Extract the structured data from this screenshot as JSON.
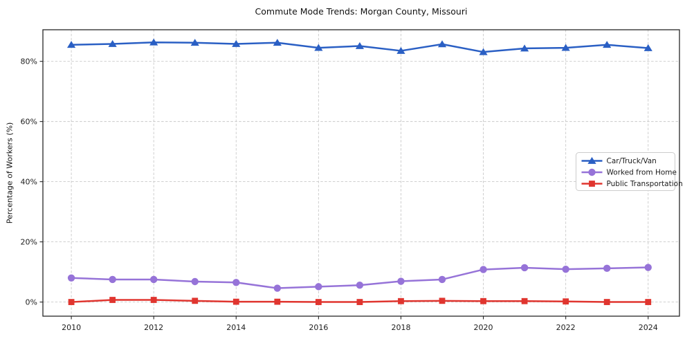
{
  "title": "Commute Mode Trends: Morgan County, Missouri",
  "ylabel": "Percentage of Workers (%)",
  "colors": {
    "car_truck_van": "#2a5fc4",
    "worked_from_home": "#9673d8",
    "public_transportation": "#e0352f",
    "grid": "#c9c9c9",
    "spine": "#262626",
    "legend_border": "#cccccc",
    "background": "#ffffff"
  },
  "chart_data": {
    "type": "line",
    "title": "Commute Mode Trends: Morgan County, Missouri",
    "xlabel": "",
    "ylabel": "Percentage of Workers (%)",
    "x": [
      2010,
      2011,
      2012,
      2013,
      2014,
      2015,
      2016,
      2017,
      2018,
      2019,
      2020,
      2021,
      2022,
      2023,
      2024
    ],
    "x_tick_years": [
      2010,
      2012,
      2014,
      2016,
      2018,
      2020,
      2022,
      2024
    ],
    "x_tick_labels": [
      "2010",
      "2012",
      "2014",
      "2016",
      "2018",
      "2020",
      "2022",
      "2024"
    ],
    "y_ticks": [
      0,
      20,
      40,
      60,
      80
    ],
    "y_tick_labels": [
      "0%",
      "20%",
      "40%",
      "60%",
      "80%"
    ],
    "xlim": [
      2009.31,
      2024.76
    ],
    "ylim": [
      -4.7,
      90.5
    ],
    "grid": true,
    "legend_position": "center right",
    "series": [
      {
        "name": "Car/Truck/Van",
        "color": "#2a5fc4",
        "marker": "triangle",
        "values": [
          85.5,
          85.8,
          86.3,
          86.2,
          85.8,
          86.2,
          84.5,
          85.1,
          83.5,
          85.7,
          83.1,
          84.3,
          84.5,
          85.5,
          84.4
        ]
      },
      {
        "name": "Worked from Home",
        "color": "#9673d8",
        "marker": "circle",
        "values": [
          8.0,
          7.5,
          7.5,
          6.8,
          6.5,
          4.6,
          5.1,
          5.6,
          6.9,
          7.5,
          10.8,
          11.4,
          10.9,
          11.2,
          11.5
        ]
      },
      {
        "name": "Public Transportation",
        "color": "#e0352f",
        "marker": "square",
        "values": [
          0.0,
          0.7,
          0.7,
          0.4,
          0.1,
          0.1,
          0.0,
          0.0,
          0.3,
          0.4,
          0.3,
          0.3,
          0.2,
          0.0,
          0.0
        ]
      }
    ]
  }
}
